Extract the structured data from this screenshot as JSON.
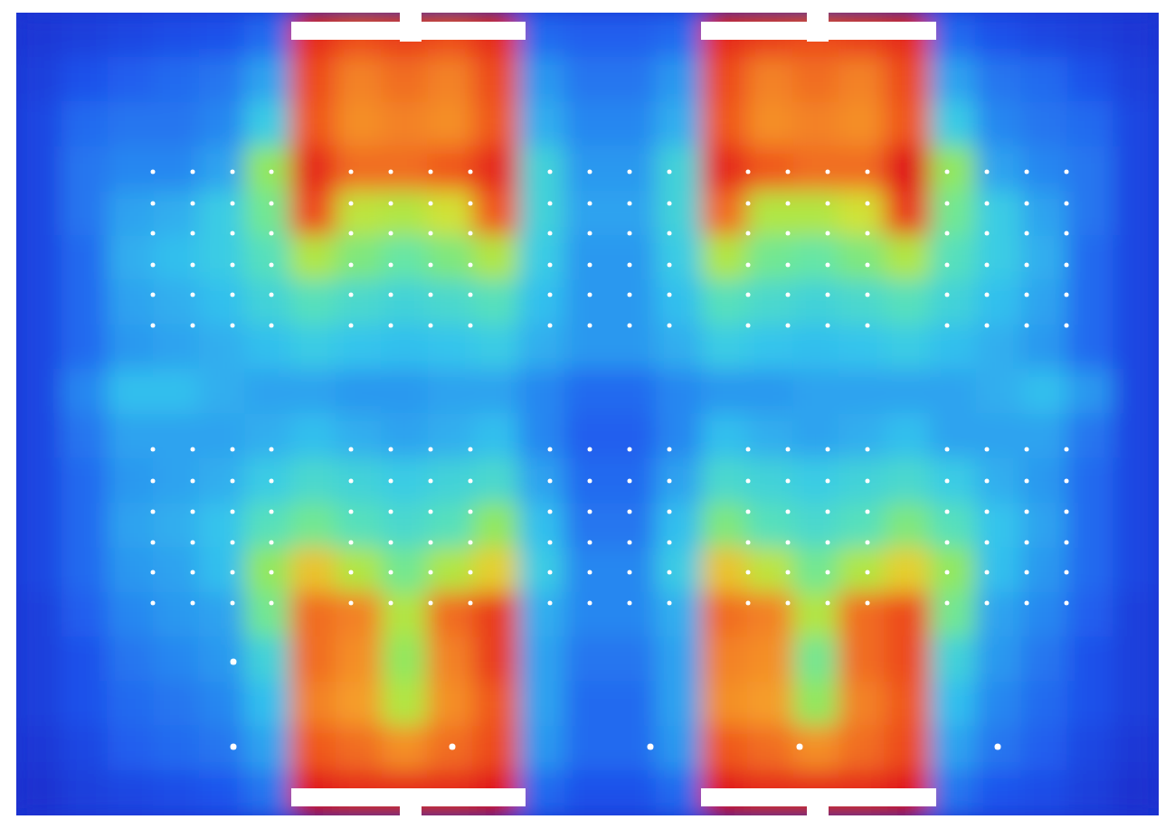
{
  "chart_data": {
    "type": "heatmap",
    "tick_labels": false,
    "cells": [
      [
        0.08,
        0.1,
        0.12,
        0.14,
        0.15,
        0.2,
        0.95,
        0.9,
        0.92,
        0.9,
        0.95,
        0.2,
        0.18,
        0.18,
        0.2,
        0.95,
        0.92,
        0.9,
        0.92,
        0.95,
        0.2,
        0.15,
        0.12,
        0.1,
        0.08
      ],
      [
        0.1,
        0.15,
        0.18,
        0.2,
        0.22,
        0.3,
        0.9,
        0.82,
        0.85,
        0.82,
        0.9,
        0.28,
        0.22,
        0.22,
        0.28,
        0.9,
        0.82,
        0.85,
        0.82,
        0.9,
        0.3,
        0.22,
        0.2,
        0.15,
        0.1
      ],
      [
        0.12,
        0.2,
        0.22,
        0.22,
        0.25,
        0.38,
        0.88,
        0.8,
        0.82,
        0.8,
        0.88,
        0.32,
        0.25,
        0.25,
        0.32,
        0.88,
        0.8,
        0.82,
        0.8,
        0.88,
        0.38,
        0.25,
        0.22,
        0.2,
        0.12
      ],
      [
        0.12,
        0.22,
        0.25,
        0.25,
        0.3,
        0.55,
        0.95,
        0.85,
        0.85,
        0.88,
        0.95,
        0.4,
        0.28,
        0.28,
        0.4,
        0.95,
        0.88,
        0.85,
        0.85,
        0.98,
        0.55,
        0.3,
        0.25,
        0.22,
        0.12
      ],
      [
        0.12,
        0.22,
        0.3,
        0.32,
        0.38,
        0.5,
        0.9,
        0.62,
        0.6,
        0.65,
        0.88,
        0.4,
        0.3,
        0.3,
        0.4,
        0.85,
        0.6,
        0.6,
        0.65,
        0.92,
        0.5,
        0.38,
        0.3,
        0.22,
        0.12
      ],
      [
        0.12,
        0.2,
        0.32,
        0.35,
        0.38,
        0.45,
        0.6,
        0.52,
        0.48,
        0.52,
        0.6,
        0.38,
        0.28,
        0.28,
        0.38,
        0.6,
        0.5,
        0.48,
        0.52,
        0.6,
        0.45,
        0.38,
        0.32,
        0.2,
        0.12
      ],
      [
        0.12,
        0.2,
        0.3,
        0.32,
        0.35,
        0.4,
        0.45,
        0.42,
        0.4,
        0.42,
        0.45,
        0.35,
        0.28,
        0.28,
        0.35,
        0.45,
        0.42,
        0.4,
        0.42,
        0.45,
        0.4,
        0.35,
        0.3,
        0.2,
        0.12
      ],
      [
        0.12,
        0.2,
        0.28,
        0.3,
        0.32,
        0.35,
        0.38,
        0.36,
        0.35,
        0.36,
        0.38,
        0.32,
        0.28,
        0.28,
        0.32,
        0.38,
        0.36,
        0.35,
        0.36,
        0.38,
        0.35,
        0.32,
        0.28,
        0.2,
        0.12
      ],
      [
        0.12,
        0.25,
        0.35,
        0.35,
        0.32,
        0.3,
        0.3,
        0.28,
        0.28,
        0.3,
        0.3,
        0.25,
        0.2,
        0.2,
        0.25,
        0.28,
        0.28,
        0.3,
        0.3,
        0.3,
        0.3,
        0.32,
        0.35,
        0.28,
        0.12
      ],
      [
        0.12,
        0.22,
        0.3,
        0.3,
        0.3,
        0.32,
        0.35,
        0.32,
        0.3,
        0.32,
        0.35,
        0.25,
        0.18,
        0.18,
        0.25,
        0.35,
        0.32,
        0.3,
        0.32,
        0.35,
        0.3,
        0.3,
        0.3,
        0.22,
        0.12
      ],
      [
        0.12,
        0.2,
        0.28,
        0.3,
        0.32,
        0.38,
        0.42,
        0.4,
        0.38,
        0.4,
        0.42,
        0.3,
        0.2,
        0.2,
        0.3,
        0.42,
        0.4,
        0.38,
        0.4,
        0.42,
        0.38,
        0.32,
        0.28,
        0.2,
        0.12
      ],
      [
        0.12,
        0.2,
        0.3,
        0.32,
        0.36,
        0.45,
        0.5,
        0.45,
        0.42,
        0.45,
        0.55,
        0.35,
        0.22,
        0.22,
        0.35,
        0.52,
        0.45,
        0.42,
        0.45,
        0.52,
        0.45,
        0.36,
        0.3,
        0.2,
        0.12
      ],
      [
        0.12,
        0.2,
        0.28,
        0.3,
        0.35,
        0.55,
        0.72,
        0.6,
        0.5,
        0.6,
        0.7,
        0.38,
        0.25,
        0.25,
        0.38,
        0.72,
        0.62,
        0.5,
        0.6,
        0.7,
        0.55,
        0.35,
        0.28,
        0.2,
        0.12
      ],
      [
        0.1,
        0.18,
        0.25,
        0.28,
        0.3,
        0.5,
        0.85,
        0.82,
        0.6,
        0.85,
        0.92,
        0.32,
        0.25,
        0.25,
        0.32,
        0.85,
        0.82,
        0.6,
        0.85,
        0.9,
        0.5,
        0.3,
        0.25,
        0.18,
        0.1
      ],
      [
        0.1,
        0.15,
        0.22,
        0.25,
        0.28,
        0.4,
        0.85,
        0.8,
        0.55,
        0.82,
        0.92,
        0.3,
        0.22,
        0.22,
        0.3,
        0.82,
        0.8,
        0.5,
        0.85,
        0.9,
        0.4,
        0.28,
        0.22,
        0.15,
        0.1
      ],
      [
        0.1,
        0.15,
        0.2,
        0.22,
        0.25,
        0.35,
        0.82,
        0.78,
        0.6,
        0.8,
        0.88,
        0.3,
        0.2,
        0.2,
        0.3,
        0.8,
        0.78,
        0.55,
        0.82,
        0.88,
        0.35,
        0.25,
        0.2,
        0.15,
        0.1
      ],
      [
        0.08,
        0.12,
        0.18,
        0.2,
        0.22,
        0.3,
        0.88,
        0.85,
        0.8,
        0.85,
        0.9,
        0.28,
        0.2,
        0.2,
        0.28,
        0.88,
        0.85,
        0.8,
        0.85,
        0.9,
        0.3,
        0.22,
        0.18,
        0.12,
        0.08
      ],
      [
        0.06,
        0.1,
        0.12,
        0.14,
        0.16,
        0.22,
        0.98,
        0.95,
        0.95,
        0.95,
        0.98,
        0.2,
        0.15,
        0.15,
        0.2,
        0.98,
        0.95,
        0.95,
        0.95,
        0.98,
        0.22,
        0.16,
        0.14,
        0.1,
        0.06
      ]
    ]
  }
}
